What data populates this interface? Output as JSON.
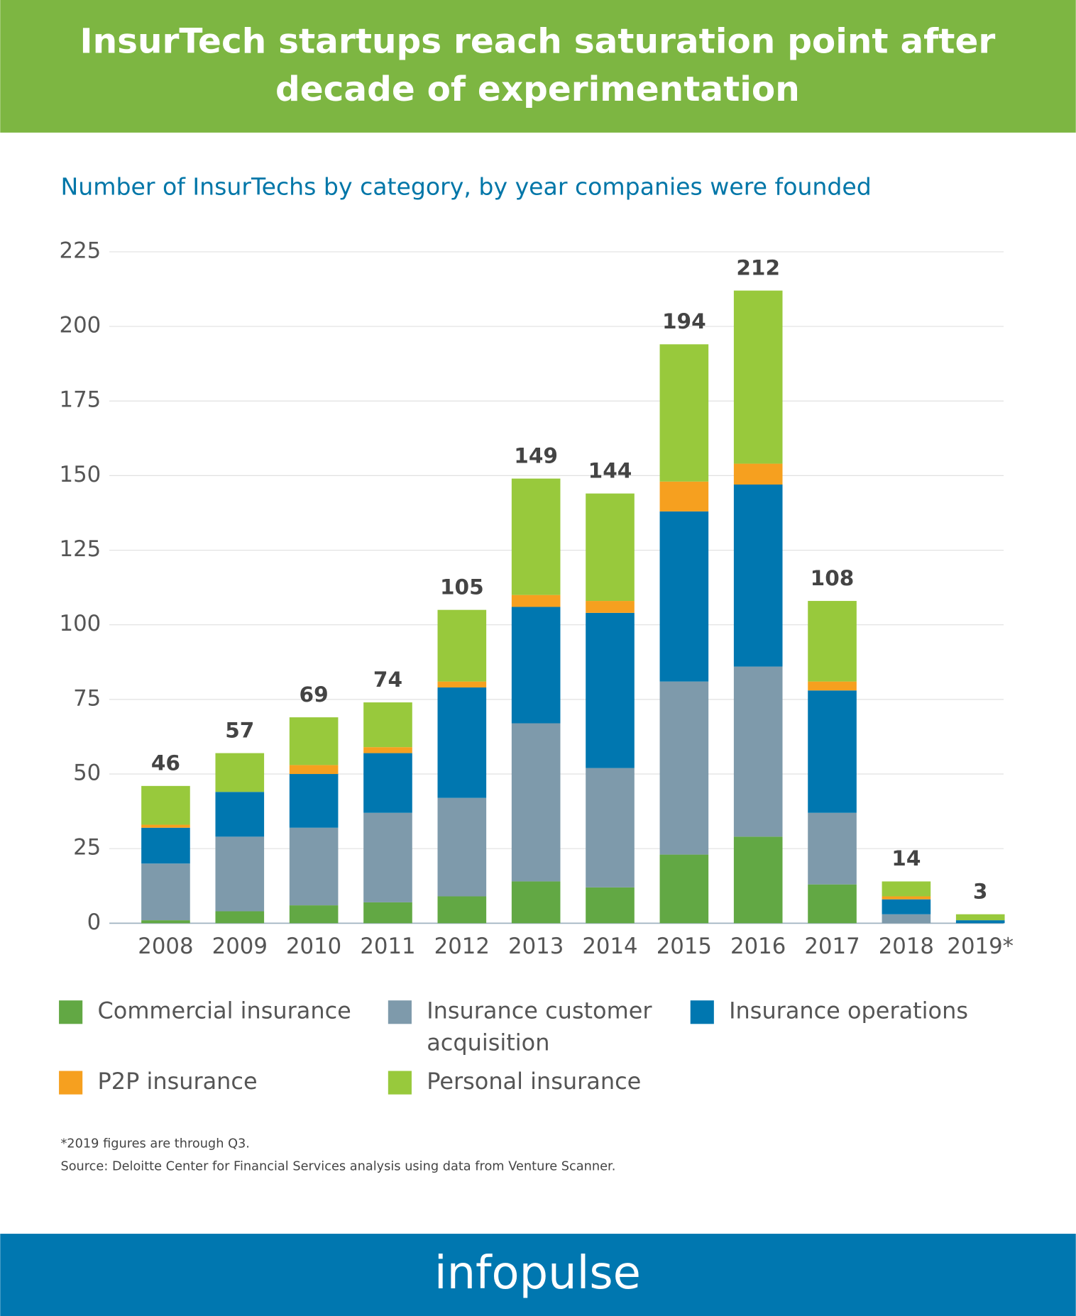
{
  "chart_data": {
    "type": "stacked_bar",
    "title_lines": [
      "InsurTech startups reach saturation point after",
      "decade of experimentation"
    ],
    "subtitle": "Number of InsurTechs by category, by year companies were founded",
    "categories": [
      "2008",
      "2009",
      "2010",
      "2011",
      "2012",
      "2013",
      "2014",
      "2015",
      "2016",
      "2017",
      "2018",
      "2019*"
    ],
    "series": [
      {
        "name": "Commercial insurance",
        "color": "#62a844",
        "values": [
          1,
          4,
          6,
          7,
          9,
          14,
          12,
          23,
          29,
          13,
          0,
          0
        ]
      },
      {
        "name": "Insurance customer acquisition",
        "color": "#7e9aab",
        "values": [
          19,
          25,
          26,
          30,
          33,
          53,
          40,
          58,
          57,
          24,
          3,
          0
        ]
      },
      {
        "name": "Insurance operations",
        "color": "#0077b0",
        "values": [
          12,
          15,
          18,
          20,
          37,
          39,
          52,
          57,
          61,
          41,
          5,
          1
        ]
      },
      {
        "name": "P2P insurance",
        "color": "#f6a01f",
        "values": [
          1,
          0,
          3,
          2,
          2,
          4,
          4,
          10,
          7,
          3,
          1,
          0
        ]
      },
      {
        "name": "Personal insurance",
        "color": "#98c93c",
        "values": [
          13,
          13,
          16,
          15,
          24,
          39,
          36,
          46,
          58,
          27,
          5,
          2
        ]
      }
    ],
    "totals": [
      46,
      57,
      69,
      74,
      105,
      149,
      144,
      194,
      212,
      108,
      14,
      3
    ],
    "ylim": [
      0,
      225
    ],
    "yticks": [
      0,
      25,
      50,
      75,
      100,
      125,
      150,
      175,
      200,
      225
    ],
    "grid": true,
    "footnotes": [
      "*2019 figures are through Q3.",
      "Source: Deloitte Center for Financial Services analysis using data from Venture Scanner."
    ],
    "brand": "infopulse"
  }
}
